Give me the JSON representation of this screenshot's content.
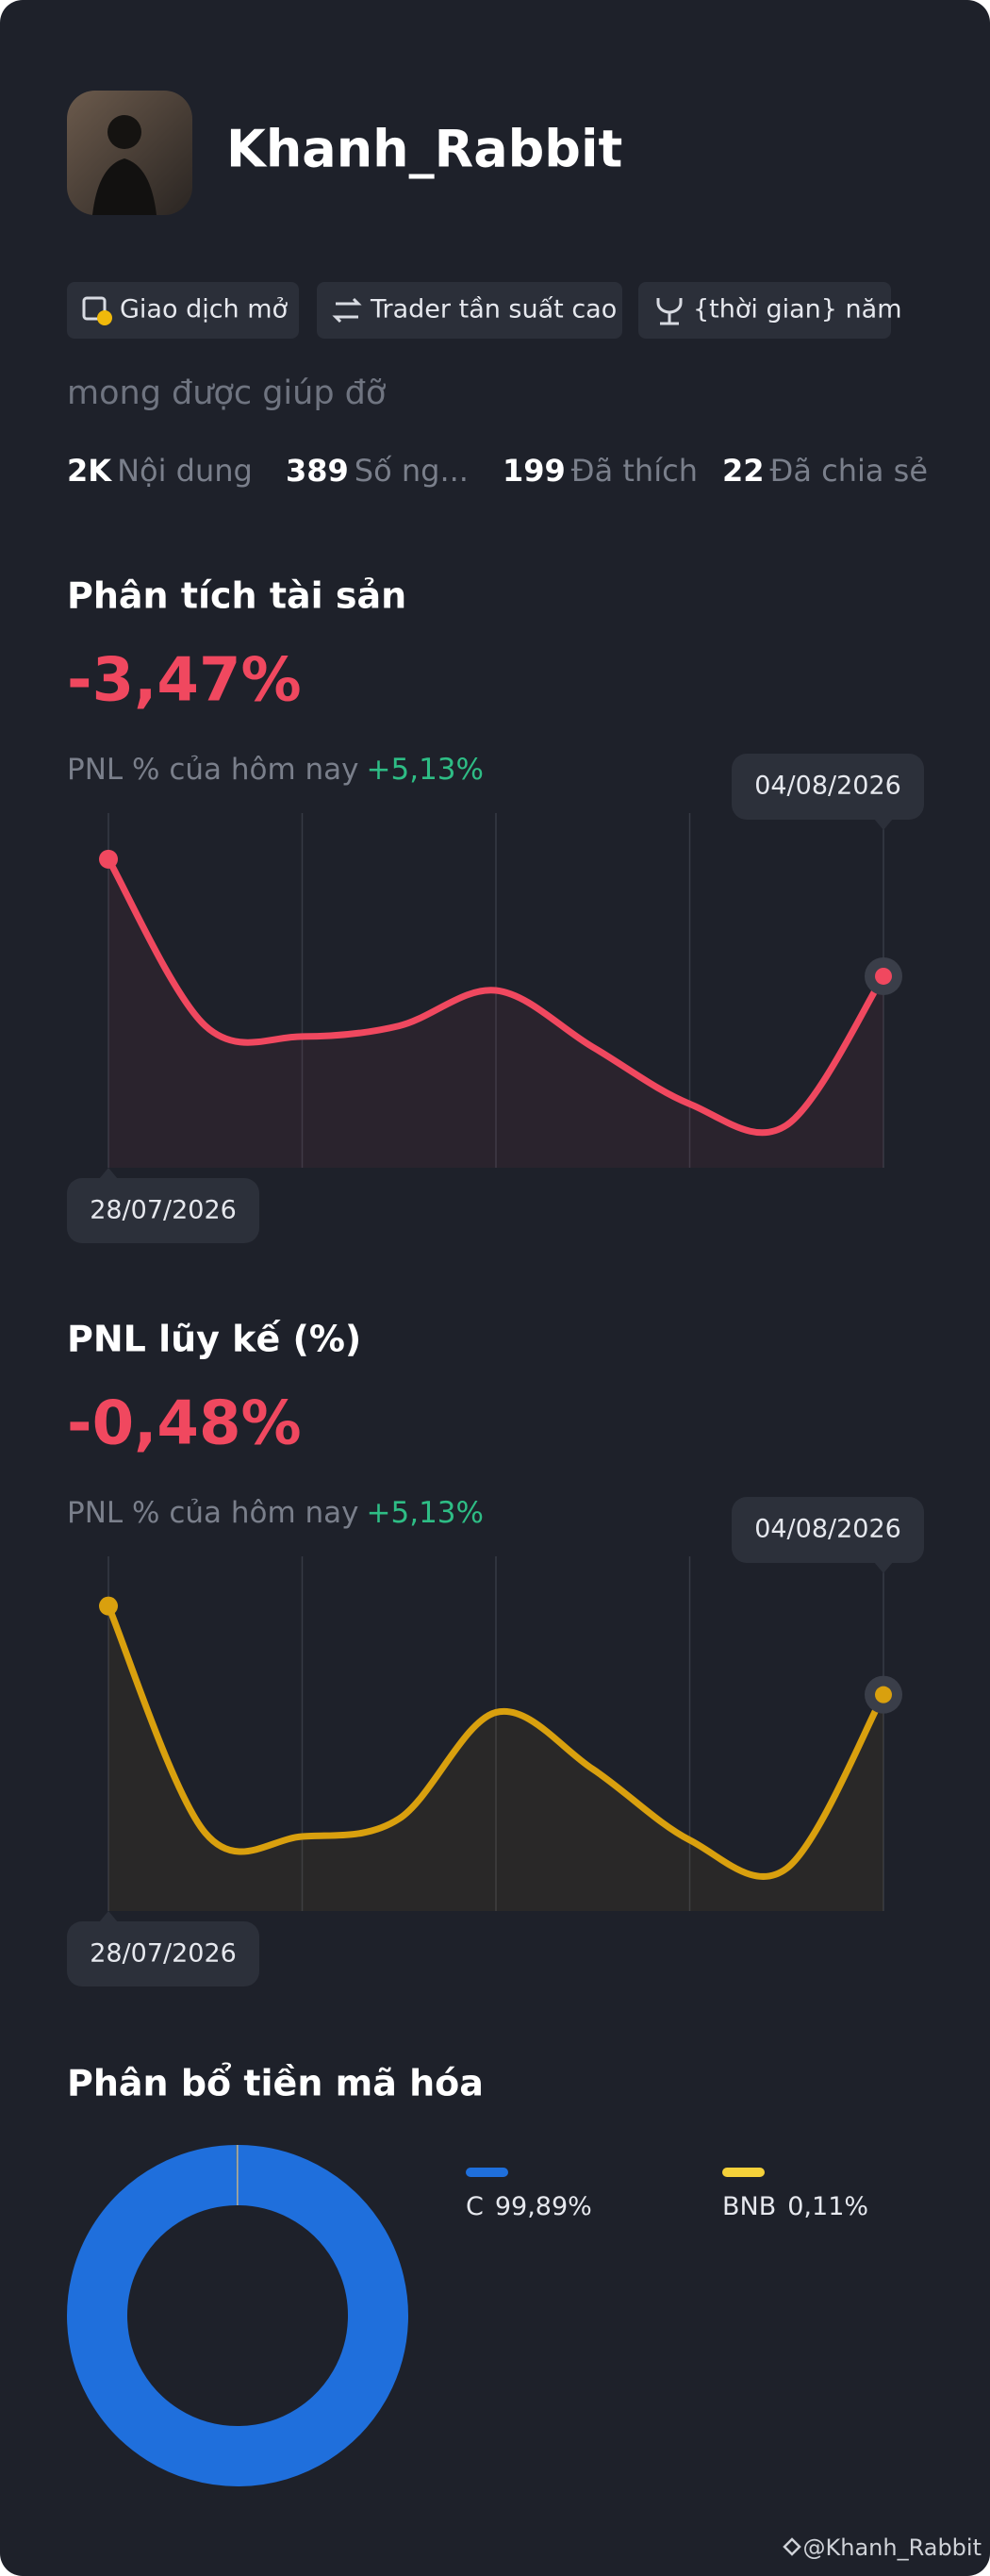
{
  "profile": {
    "name": "Khanh_Rabbit",
    "tags": [
      "Giao dịch mở",
      "Trader tần suất cao",
      "{thời gian} năm"
    ],
    "bio": "mong được giúp đỡ",
    "stats": [
      {
        "value": "2K",
        "label": "Nội dung"
      },
      {
        "value": "389",
        "label": "Số ng..."
      },
      {
        "value": "199",
        "label": "Đã thích"
      },
      {
        "value": "22",
        "label": "Đã chia sẻ"
      }
    ]
  },
  "chart_data": [
    {
      "type": "line",
      "title": "Phân tích tài sản",
      "headline": "-3,47%",
      "today_label": "PNL % của hôm nay",
      "today_value": "+5,13%",
      "start_label": "28/07/2026",
      "end_label": "04/08/2026",
      "color": "#f0485f",
      "values": [
        87,
        40,
        37,
        40,
        50,
        34,
        18,
        12,
        54
      ],
      "ylim": [
        0,
        100
      ]
    },
    {
      "type": "line",
      "title": "PNL lũy kế (%)",
      "headline": "-0,48%",
      "today_label": "PNL % của hôm nay",
      "today_value": "+5,13%",
      "start_label": "28/07/2026",
      "end_label": "04/08/2026",
      "color": "#d9a00e",
      "values": [
        86,
        22,
        21,
        26,
        56,
        40,
        20,
        12,
        61
      ],
      "ylim": [
        0,
        100
      ]
    },
    {
      "type": "pie",
      "title": "Phân bổ tiền mã hóa",
      "categories": [
        "C",
        "BNB"
      ],
      "values": [
        99.89,
        0.11
      ],
      "value_labels": [
        "99,89%",
        "0,11%"
      ],
      "colors": [
        "#1f6fdc",
        "#f5d13a"
      ]
    }
  ],
  "watermark": "@Khanh_Rabbit"
}
